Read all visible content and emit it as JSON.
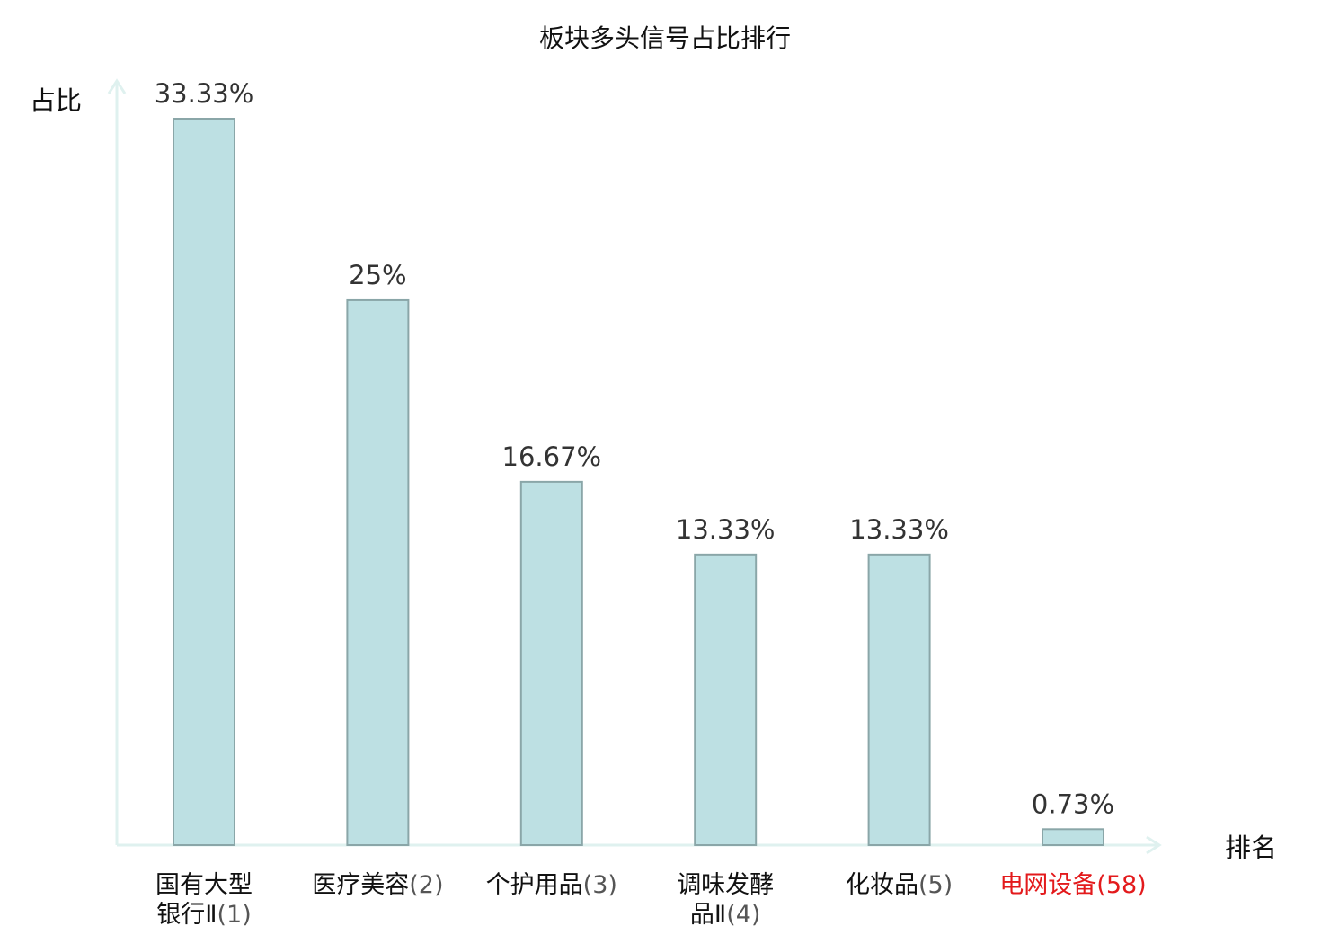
{
  "chart_data": {
    "type": "bar",
    "title": "板块多头信号占比排行",
    "xlabel": "排名",
    "ylabel": "占比",
    "ylim": [
      0,
      35
    ],
    "unit": "%",
    "categories": [
      {
        "lines": [
          "国有大型",
          "银行Ⅱ"
        ],
        "rank": "(1)",
        "highlight": false
      },
      {
        "lines": [
          "医疗美容"
        ],
        "rank": "(2)",
        "highlight": false
      },
      {
        "lines": [
          "个护用品"
        ],
        "rank": "(3)",
        "highlight": false
      },
      {
        "lines": [
          "调味发酵",
          "品Ⅱ"
        ],
        "rank": "(4)",
        "highlight": false
      },
      {
        "lines": [
          "化妆品"
        ],
        "rank": "(5)",
        "highlight": false
      },
      {
        "lines": [
          "电网设备"
        ],
        "rank": "(58)",
        "highlight": true
      }
    ],
    "values": [
      33.33,
      25,
      16.67,
      13.33,
      13.33,
      0.73
    ],
    "value_labels": [
      "33.33%",
      "25%",
      "16.67%",
      "13.33%",
      "13.33%",
      "0.73%"
    ],
    "colors": {
      "bar_fill": "#bde0e3",
      "bar_stroke": "#8aa6a8",
      "axis": "#dff1ef",
      "highlight_text": "#e31a1c",
      "text": "#111111"
    }
  }
}
